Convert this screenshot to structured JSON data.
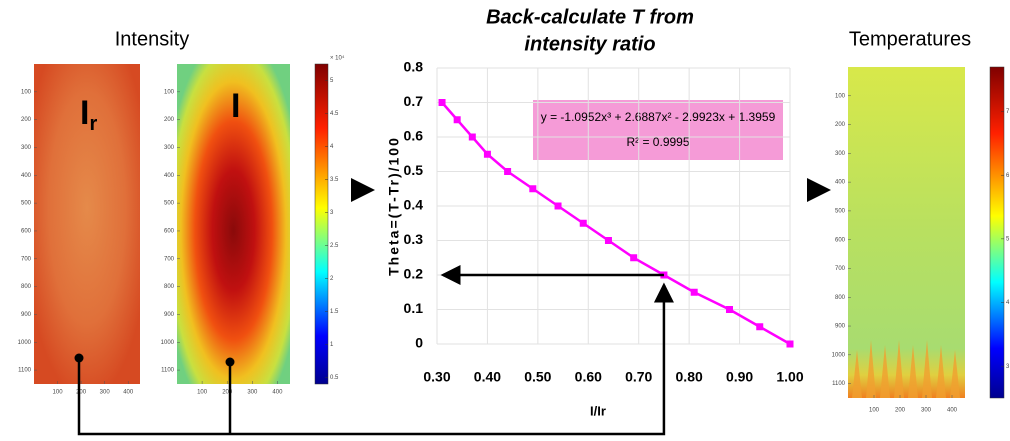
{
  "intensity_panel": {
    "title": "Intensity",
    "images": [
      {
        "label": "I",
        "label_sub": "r"
      },
      {
        "label": "I"
      }
    ],
    "ylim": [
      0,
      1150
    ],
    "yticks": [
      100,
      200,
      300,
      400,
      500,
      600,
      700,
      800,
      900,
      1000,
      1100
    ],
    "xlim": [
      0,
      450
    ],
    "xticks": [
      100,
      200,
      300,
      400
    ],
    "colorbar": {
      "lim": [
        0.4,
        5.25
      ],
      "ticks": [
        0.5,
        1,
        1.5,
        2,
        2.5,
        3,
        3.5,
        4,
        4.5,
        5
      ],
      "exponent_label": "× 10⁴"
    }
  },
  "chart_data": {
    "type": "line",
    "title": [
      "Back-calculate T from",
      "intensity ratio"
    ],
    "x_label": "I/Ir",
    "y_label": "Theta=(T-Tr)/100",
    "x": [
      0.31,
      0.34,
      0.37,
      0.4,
      0.44,
      0.49,
      0.54,
      0.59,
      0.64,
      0.69,
      0.75,
      0.81,
      0.88,
      0.94,
      1.0
    ],
    "series": [
      {
        "name": "Theta",
        "color": "#ff00ff",
        "values": [
          0.7,
          0.65,
          0.6,
          0.55,
          0.5,
          0.45,
          0.4,
          0.35,
          0.3,
          0.25,
          0.2,
          0.15,
          0.1,
          0.05,
          0
        ]
      }
    ],
    "xlim": [
      0.3,
      1.0
    ],
    "xticks": [
      {
        "value": 0.3,
        "label": "0.30"
      },
      {
        "value": 0.4,
        "label": "0.40"
      },
      {
        "value": 0.5,
        "label": "0.50"
      },
      {
        "value": 0.6,
        "label": "0.60"
      },
      {
        "value": 0.7,
        "label": "0.70"
      },
      {
        "value": 0.8,
        "label": "0.80"
      },
      {
        "value": 0.9,
        "label": "0.90"
      },
      {
        "value": 1.0,
        "label": "1.00"
      }
    ],
    "ylim": [
      0,
      0.8
    ],
    "yticks": [
      0,
      0.1,
      0.2,
      0.3,
      0.4,
      0.5,
      0.6,
      0.7,
      0.8
    ],
    "grid": true,
    "annotation": [
      "y = -1.0952x³ + 2.6887x² - 2.9923x + 1.3959",
      "R² = 0.9995"
    ]
  },
  "temperature_panel": {
    "title": "Temperatures",
    "ylim": [
      0,
      1150
    ],
    "yticks": [
      100,
      200,
      300,
      400,
      500,
      600,
      700,
      800,
      900,
      1000,
      1100
    ],
    "xlim": [
      0,
      450
    ],
    "xticks": [
      100,
      200,
      300,
      400
    ],
    "colorbar": {
      "lim": [
        2.5,
        7.7
      ],
      "ticks": [
        3,
        4,
        5,
        6,
        7
      ]
    }
  }
}
